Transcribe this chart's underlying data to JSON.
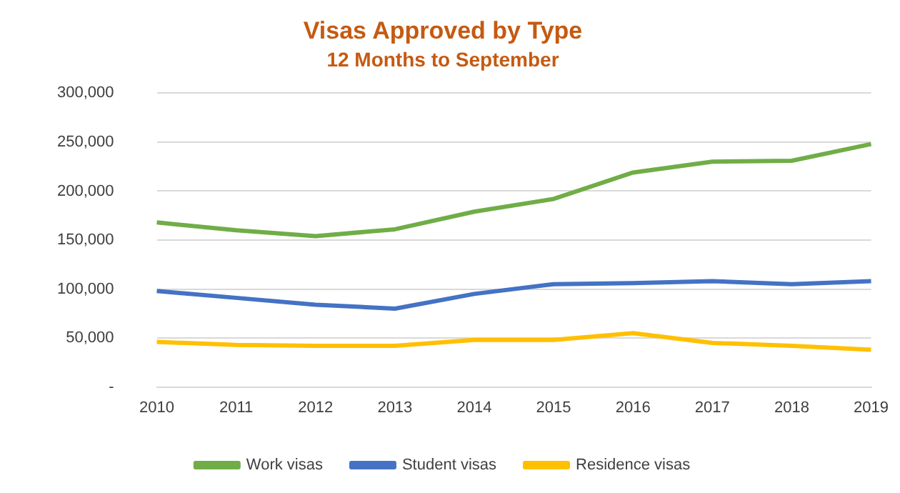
{
  "chart_data": {
    "type": "line",
    "title": "Visas Approved by Type",
    "subtitle": "12 Months to September",
    "categories": [
      "2010",
      "2011",
      "2012",
      "2013",
      "2014",
      "2015",
      "2016",
      "2017",
      "2018",
      "2019"
    ],
    "series": [
      {
        "name": "Work visas",
        "color": "#70ad47",
        "values": [
          168000,
          160000,
          154000,
          161000,
          179000,
          192000,
          219000,
          230000,
          231000,
          248000
        ]
      },
      {
        "name": "Student visas",
        "color": "#4472c4",
        "values": [
          98000,
          91000,
          84000,
          80000,
          95000,
          105000,
          106000,
          108000,
          105000,
          108000
        ]
      },
      {
        "name": "Residence visas",
        "color": "#ffc000",
        "values": [
          46000,
          43000,
          42000,
          42000,
          48000,
          48000,
          55000,
          45000,
          42000,
          38000
        ]
      }
    ],
    "ylim": [
      0,
      300000
    ],
    "yticks": [
      {
        "value": 0,
        "label": "-"
      },
      {
        "value": 50000,
        "label": "50,000"
      },
      {
        "value": 100000,
        "label": "100,000"
      },
      {
        "value": 150000,
        "label": "150,000"
      },
      {
        "value": 200000,
        "label": "200,000"
      },
      {
        "value": 250000,
        "label": "250,000"
      },
      {
        "value": 300000,
        "label": "300,000"
      }
    ],
    "grid": "y",
    "legend": "bottom",
    "marker": "none",
    "line_style": "solid"
  }
}
